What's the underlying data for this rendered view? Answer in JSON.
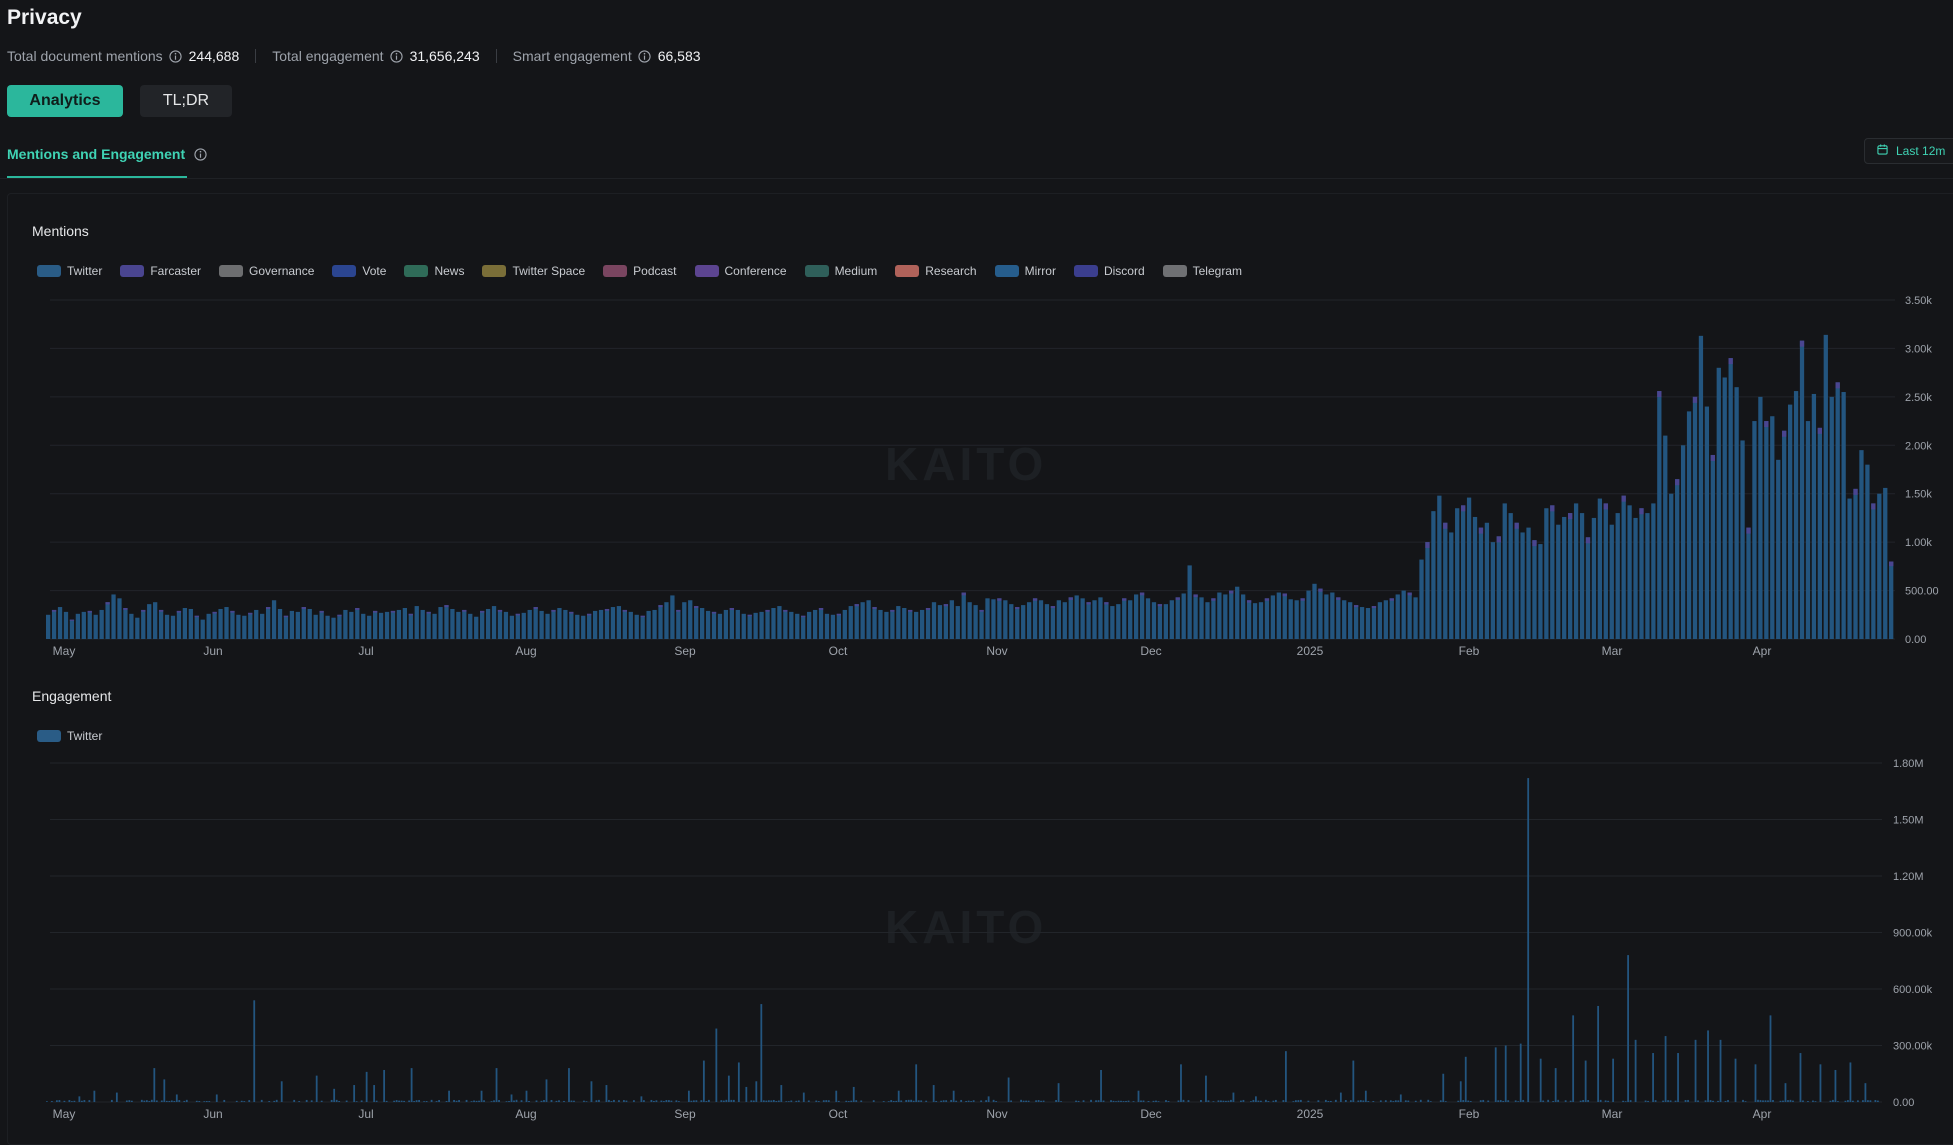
{
  "page": {
    "title": "Privacy",
    "stats": [
      {
        "label": "Total document mentions",
        "value": "244,688"
      },
      {
        "label": "Total engagement",
        "value": "31,656,243"
      },
      {
        "label": "Smart engagement",
        "value": "66,583"
      }
    ],
    "tabs": [
      {
        "label": "Analytics",
        "active": true
      },
      {
        "label": "TL;DR",
        "active": false
      }
    ],
    "subtab": "Mentions and Engagement",
    "date_range": "Last 12m",
    "watermark": "KAITO"
  },
  "colors": {
    "accent": "#2bb79c",
    "accent_text": "#3fd3b4",
    "background": "#141518",
    "bar_primary": "#23557f",
    "grid": "#22252a"
  },
  "chart_data": [
    {
      "type": "bar",
      "title": "Mentions",
      "legend": [
        {
          "name": "Twitter",
          "color": "#2a5c86"
        },
        {
          "name": "Farcaster",
          "color": "#4a4590"
        },
        {
          "name": "Governance",
          "color": "#6d6e70"
        },
        {
          "name": "Vote",
          "color": "#2b4590"
        },
        {
          "name": "News",
          "color": "#2f6b58"
        },
        {
          "name": "Twitter Space",
          "color": "#7a6e38"
        },
        {
          "name": "Podcast",
          "color": "#7a4560"
        },
        {
          "name": "Conference",
          "color": "#5c4490"
        },
        {
          "name": "Medium",
          "color": "#2f5f5a"
        },
        {
          "name": "Research",
          "color": "#b0625a"
        },
        {
          "name": "Mirror",
          "color": "#265d8c"
        },
        {
          "name": "Discord",
          "color": "#3b3e8e"
        },
        {
          "name": "Telegram",
          "color": "#6f7073"
        }
      ],
      "x_tick_labels": [
        "May",
        "Jun",
        "Jul",
        "Aug",
        "Sep",
        "Oct",
        "Nov",
        "Dec",
        "2025",
        "Feb",
        "Mar",
        "Apr"
      ],
      "y_tick_labels": [
        "0.00",
        "500.00",
        "1.00k",
        "1.50k",
        "2.00k",
        "2.50k",
        "3.00k",
        "3.50k"
      ],
      "ylim": [
        0,
        3500
      ],
      "grid": true,
      "legend_position": "top-left",
      "series": [
        {
          "name": "Twitter",
          "color": "#23557f",
          "weekly_daily_values": [
            [
              250,
              300,
              330,
              280,
              200,
              260,
              280
            ],
            [
              290,
              250,
              300,
              380,
              460,
              420,
              320
            ],
            [
              260,
              220,
              300,
              360,
              380,
              300,
              250
            ],
            [
              240,
              290,
              320,
              310,
              240,
              200,
              260
            ],
            [
              280,
              310,
              330,
              290,
              250,
              240,
              270
            ],
            [
              300,
              260,
              330,
              400,
              310,
              240,
              290
            ],
            [
              280,
              330,
              310,
              250,
              290,
              240,
              220
            ],
            [
              250,
              300,
              280,
              320,
              260,
              240,
              290
            ],
            [
              270,
              280,
              290,
              300,
              320,
              260,
              340
            ],
            [
              300,
              280,
              260,
              330,
              350,
              310,
              280
            ],
            [
              300,
              260,
              230,
              290,
              310,
              340,
              300
            ],
            [
              280,
              240,
              260,
              270,
              300,
              330,
              290
            ],
            [
              260,
              300,
              320,
              300,
              280,
              250,
              240
            ],
            [
              260,
              290,
              300,
              310,
              330,
              340,
              300
            ],
            [
              280,
              250,
              240,
              290,
              300,
              350,
              380
            ],
            [
              450,
              300,
              380,
              400,
              340,
              320,
              290
            ],
            [
              280,
              260,
              300,
              320,
              300,
              260,
              250
            ],
            [
              270,
              280,
              300,
              320,
              340,
              300,
              280
            ],
            [
              260,
              240,
              280,
              300,
              320,
              260,
              250
            ],
            [
              260,
              300,
              340,
              360,
              380,
              400,
              330
            ],
            [
              300,
              280,
              300,
              340,
              320,
              300,
              280
            ],
            [
              300,
              320,
              380,
              350,
              360,
              400,
              340
            ],
            [
              480,
              380,
              350,
              300,
              420,
              410,
              420
            ],
            [
              400,
              360,
              330,
              350,
              380,
              420,
              400
            ],
            [
              360,
              340,
              400,
              380,
              430,
              450,
              420
            ],
            [
              380,
              400,
              430,
              380,
              340,
              360,
              420
            ],
            [
              400,
              460,
              480,
              420,
              380,
              360,
              360
            ],
            [
              400,
              430,
              470,
              760,
              460,
              430,
              380
            ],
            [
              420,
              480,
              460,
              500,
              540,
              460,
              400
            ],
            [
              370,
              380,
              420,
              450,
              480,
              470,
              410
            ],
            [
              400,
              420,
              500,
              570,
              520,
              460,
              480
            ],
            [
              430,
              400,
              380,
              350,
              330,
              320,
              340
            ],
            [
              380,
              400,
              420,
              460,
              500,
              480,
              430
            ],
            [
              820,
              1000,
              1320,
              1480,
              1200,
              1100,
              1350
            ],
            [
              1380,
              1460,
              1260,
              1150,
              1200,
              1000,
              1060
            ],
            [
              1400,
              1300,
              1200,
              1100,
              1150,
              1020,
              980
            ],
            [
              1350,
              1380,
              1180,
              1260,
              1300,
              1400,
              1300
            ],
            [
              1050,
              1250,
              1450,
              1400,
              1180,
              1300,
              1480
            ],
            [
              1380,
              1250,
              1350,
              1300,
              1400,
              2560,
              2100
            ],
            [
              1500,
              1650,
              2000,
              2350,
              2500,
              3130,
              2400
            ],
            [
              1900,
              2800,
              2700,
              2900,
              2600,
              2050,
              1150
            ],
            [
              2250,
              2500,
              2250,
              2300,
              1850,
              2150,
              2420
            ],
            [
              2560,
              3080,
              2250,
              2530,
              2180,
              3140,
              2500
            ],
            [
              2650,
              2550,
              1450,
              1550,
              1950,
              1800,
              1400,
              1500,
              1560,
              800
            ]
          ]
        }
      ]
    },
    {
      "type": "bar",
      "title": "Engagement",
      "legend": [
        {
          "name": "Twitter",
          "color": "#2a5c86"
        }
      ],
      "x_tick_labels": [
        "May",
        "Jun",
        "Jul",
        "Aug",
        "Sep",
        "Oct",
        "Nov",
        "Dec",
        "2025",
        "Feb",
        "Mar",
        "Apr"
      ],
      "y_tick_labels": [
        "0.00",
        "300.00k",
        "600.00k",
        "900.00k",
        "1.20M",
        "1.50M",
        "1.80M"
      ],
      "ylim": [
        0,
        1800000
      ],
      "grid": true,
      "legend_position": "top-left",
      "series": [
        {
          "name": "Twitter",
          "color": "#23557f",
          "spikes": [
            {
              "day": 13,
              "value": 30000
            },
            {
              "day": 19,
              "value": 60000
            },
            {
              "day": 28,
              "value": 50000
            },
            {
              "day": 43,
              "value": 180000
            },
            {
              "day": 47,
              "value": 120000
            },
            {
              "day": 52,
              "value": 40000
            },
            {
              "day": 68,
              "value": 40000
            },
            {
              "day": 83,
              "value": 540000
            },
            {
              "day": 94,
              "value": 110000
            },
            {
              "day": 108,
              "value": 140000
            },
            {
              "day": 115,
              "value": 70000
            },
            {
              "day": 123,
              "value": 90000
            },
            {
              "day": 128,
              "value": 160000
            },
            {
              "day": 131,
              "value": 90000
            },
            {
              "day": 135,
              "value": 170000
            },
            {
              "day": 146,
              "value": 180000
            },
            {
              "day": 161,
              "value": 60000
            },
            {
              "day": 174,
              "value": 60000
            },
            {
              "day": 180,
              "value": 180000
            },
            {
              "day": 186,
              "value": 40000
            },
            {
              "day": 192,
              "value": 60000
            },
            {
              "day": 200,
              "value": 120000
            },
            {
              "day": 209,
              "value": 180000
            },
            {
              "day": 218,
              "value": 110000
            },
            {
              "day": 224,
              "value": 90000
            },
            {
              "day": 238,
              "value": 30000
            },
            {
              "day": 257,
              "value": 60000
            },
            {
              "day": 263,
              "value": 220000
            },
            {
              "day": 268,
              "value": 390000
            },
            {
              "day": 273,
              "value": 140000
            },
            {
              "day": 277,
              "value": 210000
            },
            {
              "day": 280,
              "value": 80000
            },
            {
              "day": 284,
              "value": 110000
            },
            {
              "day": 286,
              "value": 520000
            },
            {
              "day": 294,
              "value": 90000
            },
            {
              "day": 303,
              "value": 50000
            },
            {
              "day": 316,
              "value": 60000
            },
            {
              "day": 323,
              "value": 80000
            },
            {
              "day": 341,
              "value": 60000
            },
            {
              "day": 348,
              "value": 200000
            },
            {
              "day": 355,
              "value": 90000
            },
            {
              "day": 363,
              "value": 60000
            },
            {
              "day": 377,
              "value": 30000
            },
            {
              "day": 385,
              "value": 130000
            },
            {
              "day": 405,
              "value": 100000
            },
            {
              "day": 422,
              "value": 170000
            },
            {
              "day": 437,
              "value": 60000
            },
            {
              "day": 454,
              "value": 200000
            },
            {
              "day": 464,
              "value": 140000
            },
            {
              "day": 475,
              "value": 50000
            },
            {
              "day": 484,
              "value": 30000
            },
            {
              "day": 496,
              "value": 270000
            },
            {
              "day": 518,
              "value": 50000
            },
            {
              "day": 523,
              "value": 220000
            },
            {
              "day": 528,
              "value": 60000
            },
            {
              "day": 542,
              "value": 40000
            },
            {
              "day": 559,
              "value": 150000
            },
            {
              "day": 566,
              "value": 110000
            },
            {
              "day": 568,
              "value": 240000
            },
            {
              "day": 580,
              "value": 290000
            },
            {
              "day": 584,
              "value": 300000
            },
            {
              "day": 590,
              "value": 310000
            },
            {
              "day": 593,
              "value": 1720000
            },
            {
              "day": 598,
              "value": 230000
            },
            {
              "day": 604,
              "value": 180000
            },
            {
              "day": 611,
              "value": 460000
            },
            {
              "day": 616,
              "value": 220000
            },
            {
              "day": 621,
              "value": 510000
            },
            {
              "day": 627,
              "value": 230000
            },
            {
              "day": 633,
              "value": 780000
            },
            {
              "day": 636,
              "value": 330000
            },
            {
              "day": 643,
              "value": 260000
            },
            {
              "day": 648,
              "value": 350000
            },
            {
              "day": 653,
              "value": 260000
            },
            {
              "day": 660,
              "value": 330000
            },
            {
              "day": 665,
              "value": 380000
            },
            {
              "day": 670,
              "value": 330000
            },
            {
              "day": 676,
              "value": 230000
            },
            {
              "day": 684,
              "value": 200000
            },
            {
              "day": 690,
              "value": 460000
            },
            {
              "day": 696,
              "value": 100000
            },
            {
              "day": 702,
              "value": 260000
            },
            {
              "day": 710,
              "value": 200000
            },
            {
              "day": 716,
              "value": 170000
            },
            {
              "day": 722,
              "value": 210000
            },
            {
              "day": 728,
              "value": 100000
            }
          ]
        }
      ]
    }
  ]
}
